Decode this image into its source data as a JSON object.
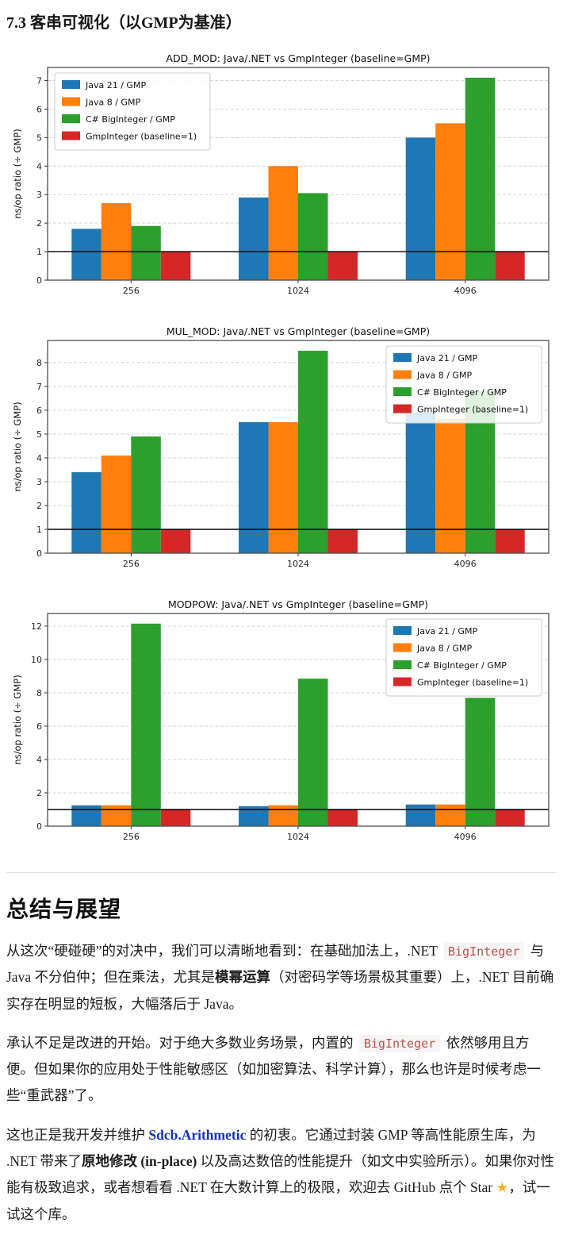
{
  "page": {
    "section_heading": "7.3 客串可视化（以GMP为基准）",
    "summary_heading": "总结与展望"
  },
  "colors": {
    "series_blue": "#1f77b4",
    "series_orange": "#ff7f0e",
    "series_green": "#2ca02c",
    "series_red": "#d62728",
    "baseline_line": "#000000",
    "grid": "#d4d4d4",
    "code_text": "#b5524c",
    "link": "#1230bd",
    "star": "#f3b11b"
  },
  "chart_data": [
    {
      "type": "bar",
      "title": "ADD_MOD: Java/.NET vs GmpInteger (baseline=GMP)",
      "xlabel": "",
      "ylabel": "ns/op ratio (÷ GMP)",
      "categories": [
        "256",
        "1024",
        "4096"
      ],
      "series": [
        {
          "name": "Java 21 / GMP",
          "color": "#1f77b4",
          "values": [
            1.8,
            2.9,
            5.0
          ]
        },
        {
          "name": "Java 8 / GMP",
          "color": "#ff7f0e",
          "values": [
            2.7,
            4.0,
            5.5
          ]
        },
        {
          "name": "C# BigInteger / GMP",
          "color": "#2ca02c",
          "values": [
            1.9,
            3.05,
            7.1
          ]
        },
        {
          "name": "GmpInteger (baseline=1)",
          "color": "#d62728",
          "values": [
            1.0,
            1.0,
            1.0
          ]
        }
      ],
      "ylim": [
        0,
        7.46
      ],
      "yticks": [
        0,
        1,
        2,
        3,
        4,
        5,
        6,
        7
      ],
      "baseline_y": 1,
      "grid": "dashed",
      "legend_position": "top-left"
    },
    {
      "type": "bar",
      "title": "MUL_MOD: Java/.NET vs GmpInteger (baseline=GMP)",
      "xlabel": "",
      "ylabel": "ns/op ratio (÷ GMP)",
      "categories": [
        "256",
        "1024",
        "4096"
      ],
      "series": [
        {
          "name": "Java 21 / GMP",
          "color": "#1f77b4",
          "values": [
            3.4,
            5.5,
            5.9
          ]
        },
        {
          "name": "Java 8 / GMP",
          "color": "#ff7f0e",
          "values": [
            4.1,
            5.5,
            5.65
          ]
        },
        {
          "name": "C# BigInteger / GMP",
          "color": "#2ca02c",
          "values": [
            4.9,
            8.5,
            6.8
          ]
        },
        {
          "name": "GmpInteger (baseline=1)",
          "color": "#d62728",
          "values": [
            1.0,
            1.0,
            1.0
          ]
        }
      ],
      "ylim": [
        0,
        8.93
      ],
      "yticks": [
        0,
        1,
        2,
        3,
        4,
        5,
        6,
        7,
        8
      ],
      "baseline_y": 1,
      "grid": "dashed",
      "legend_position": "top-right"
    },
    {
      "type": "bar",
      "title": "MODPOW: Java/.NET vs GmpInteger (baseline=GMP)",
      "xlabel": "",
      "ylabel": "ns/op ratio (÷ GMP)",
      "categories": [
        "256",
        "1024",
        "4096"
      ],
      "series": [
        {
          "name": "Java 21 / GMP",
          "color": "#1f77b4",
          "values": [
            1.25,
            1.2,
            1.3
          ]
        },
        {
          "name": "Java 8 / GMP",
          "color": "#ff7f0e",
          "values": [
            1.25,
            1.25,
            1.3
          ]
        },
        {
          "name": "C# BigInteger / GMP",
          "color": "#2ca02c",
          "values": [
            12.15,
            8.85,
            7.7
          ]
        },
        {
          "name": "GmpInteger (baseline=1)",
          "color": "#d62728",
          "values": [
            1.0,
            1.0,
            1.0
          ]
        }
      ],
      "ylim": [
        0,
        12.76
      ],
      "yticks": [
        0,
        2,
        4,
        6,
        8,
        10,
        12
      ],
      "baseline_y": 1,
      "grid": "dashed",
      "legend_position": "top-right"
    }
  ],
  "paragraphs": [
    [
      {
        "text": "从这次“硬碰硬”的对决中，我们可以清晰地看到：在基础加法上，.NET "
      },
      {
        "text": "BigInteger",
        "style": "code"
      },
      {
        "text": " 与 Java 不分伯仲；但在乘法，尤其是"
      },
      {
        "text": "模幂运算",
        "style": "bold"
      },
      {
        "text": "（对密码学等场景极其重要）上，.NET 目前确实存在明显的短板，大幅落后于 Java。"
      }
    ],
    [
      {
        "text": "承认不足是改进的开始。对于绝大多数业务场景，内置的 "
      },
      {
        "text": "BigInteger",
        "style": "code"
      },
      {
        "text": " 依然够用且方便。但如果你的应用处于性能敏感区（如加密算法、科学计算），那么也许是时候考虑一些“重武器”了。"
      }
    ],
    [
      {
        "text": "这也正是我开发并维护 "
      },
      {
        "text": "Sdcb.Arithmetic",
        "style": "link",
        "name": "sdcb-arithmetic-link"
      },
      {
        "text": " 的初衷。它通过封装 GMP 等高性能原生库，为 .NET 带来了"
      },
      {
        "text": "原地修改 (in-place)",
        "style": "bold"
      },
      {
        "text": " 以及高达数倍的性能提升（如文中实验所示）。如果你对性能有极致追求，或者想看看 .NET 在大数计算上的极限，欢迎去 GitHub 点个 Star "
      },
      {
        "text": "★",
        "style": "star",
        "name": "star-icon"
      },
      {
        "text": "，试一试这个库。"
      }
    ]
  ]
}
